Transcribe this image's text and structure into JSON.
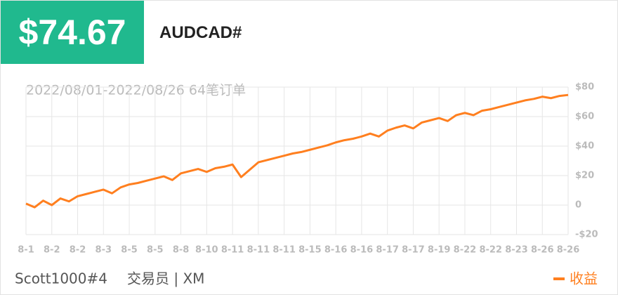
{
  "header": {
    "profit": "$74.67"
  },
  "footer": {
    "trader": "Scott1000#4",
    "role": "交易员 | XM"
  },
  "chart_data": {
    "type": "line",
    "title": "AUDCAD#",
    "subtitle": "2022/08/01-2022/08/26 64笔订单",
    "categories": [
      "8-1",
      null,
      null,
      "8-2",
      null,
      null,
      "8-2",
      null,
      null,
      "8-3",
      null,
      null,
      "8-5",
      null,
      null,
      "8-5",
      null,
      null,
      "8-8",
      null,
      null,
      "8-10",
      null,
      null,
      "8-11",
      null,
      null,
      "8-11",
      null,
      null,
      "8-11",
      null,
      null,
      "8-15",
      null,
      null,
      "8-16",
      null,
      null,
      "8-16",
      null,
      null,
      "8-17",
      null,
      null,
      "8-17",
      null,
      null,
      "8-19",
      null,
      null,
      "8-22",
      null,
      null,
      "8-22",
      null,
      null,
      "8-23",
      null,
      null,
      "8-26",
      null,
      null,
      "8-26"
    ],
    "series": [
      {
        "name": "收益",
        "color": "#ff7f1f",
        "values": [
          1,
          -1.5,
          3,
          0,
          4.5,
          2.5,
          6,
          7.5,
          9,
          10.5,
          8,
          12,
          14,
          15,
          16.5,
          18,
          19.5,
          17,
          21.5,
          23,
          24.5,
          22.5,
          25,
          26,
          27.5,
          19,
          24,
          29,
          30.5,
          32,
          33.5,
          35,
          36,
          37.5,
          39,
          40.5,
          42.5,
          44,
          45,
          46.5,
          48.5,
          46.5,
          50.5,
          52.5,
          54,
          52,
          56,
          57.5,
          59,
          57,
          61,
          62.5,
          61,
          64,
          65,
          66.5,
          68,
          69.5,
          71,
          72,
          73.5,
          72.5,
          74,
          74.67
        ]
      }
    ],
    "ylim": [
      -20,
      80
    ],
    "yticks": [
      {
        "value": 80,
        "label": "$80"
      },
      {
        "value": 60,
        "label": "$60"
      },
      {
        "value": 40,
        "label": "$40"
      },
      {
        "value": 20,
        "label": "$20"
      },
      0,
      {
        "value": -20,
        "label": "-$20"
      }
    ],
    "grid": true,
    "y_axis_side": "right",
    "legend": "bottom-right"
  }
}
